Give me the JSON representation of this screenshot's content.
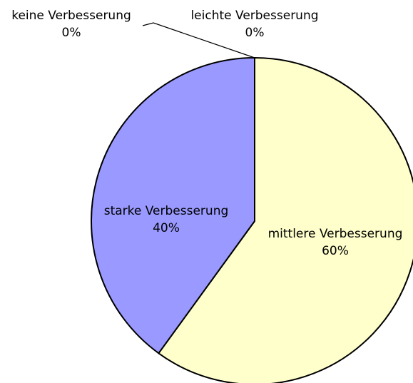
{
  "chart_data": {
    "type": "pie",
    "categories": [
      "keine Verbesserung",
      "leichte Verbesserung",
      "mittlere Verbesserung",
      "starke Verbesserung"
    ],
    "values": [
      0,
      0,
      60,
      40
    ],
    "value_labels": [
      "0%",
      "0%",
      "60%",
      "40%"
    ],
    "colors": [
      null,
      null,
      "#ffffcc",
      "#9999ff"
    ]
  }
}
